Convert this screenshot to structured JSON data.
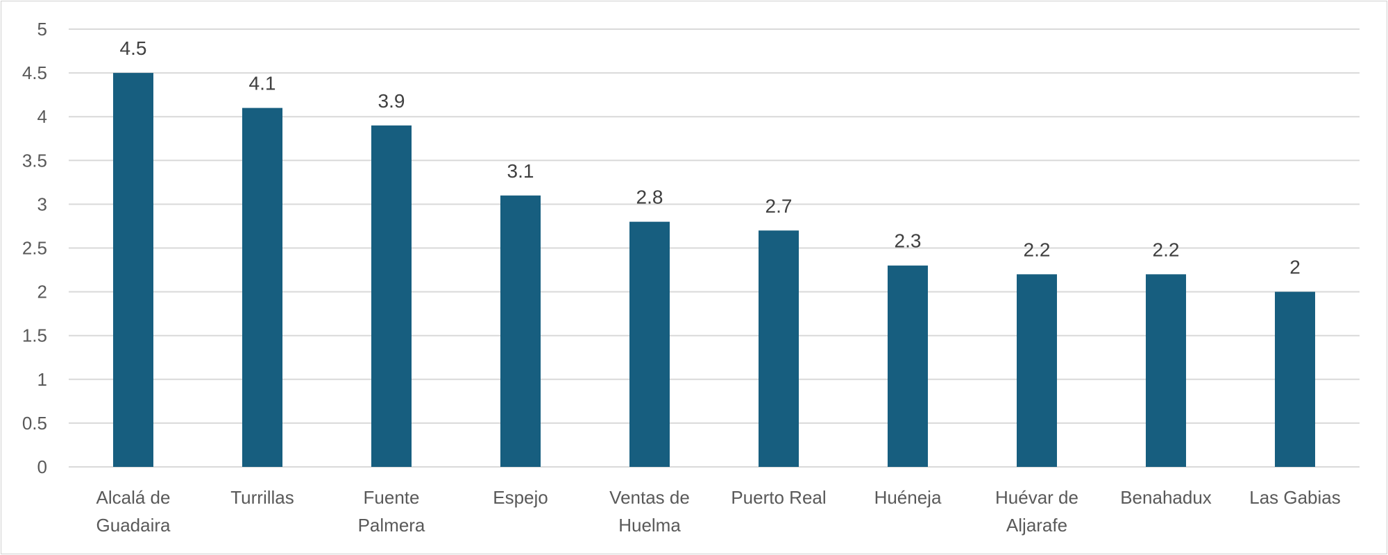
{
  "chart_data": {
    "type": "bar",
    "title": "",
    "xlabel": "",
    "ylabel": "",
    "categories": [
      "Alcalá de Guadaira",
      "Turrillas",
      "Fuente Palmera",
      "Espejo",
      "Ventas de Huelma",
      "Puerto Real",
      "Huéneja",
      "Huévar de Aljarafe",
      "Benahadux",
      "Las Gabias"
    ],
    "category_lines": [
      [
        "Alcalá de",
        "Guadaira"
      ],
      [
        "Turrillas"
      ],
      [
        "Fuente",
        "Palmera"
      ],
      [
        "Espejo"
      ],
      [
        "Ventas de",
        "Huelma"
      ],
      [
        "Puerto Real"
      ],
      [
        "Huéneja"
      ],
      [
        "Huévar de",
        "Aljarafe"
      ],
      [
        "Benahadux"
      ],
      [
        "Las Gabias"
      ]
    ],
    "values": [
      4.5,
      4.1,
      3.9,
      3.1,
      2.8,
      2.7,
      2.3,
      2.2,
      2.2,
      2
    ],
    "data_labels": [
      "4.5",
      "4.1",
      "3.9",
      "3.1",
      "2.8",
      "2.7",
      "2.3",
      "2.2",
      "2.2",
      "2"
    ],
    "ylim": [
      0,
      5
    ],
    "yticks": [
      "0",
      "0.5",
      "1",
      "1.5",
      "2",
      "2.5",
      "3",
      "3.5",
      "4",
      "4.5",
      "5"
    ],
    "grid": true,
    "bar_color": "#175e7f",
    "grid_color": "#d9d9d9"
  }
}
